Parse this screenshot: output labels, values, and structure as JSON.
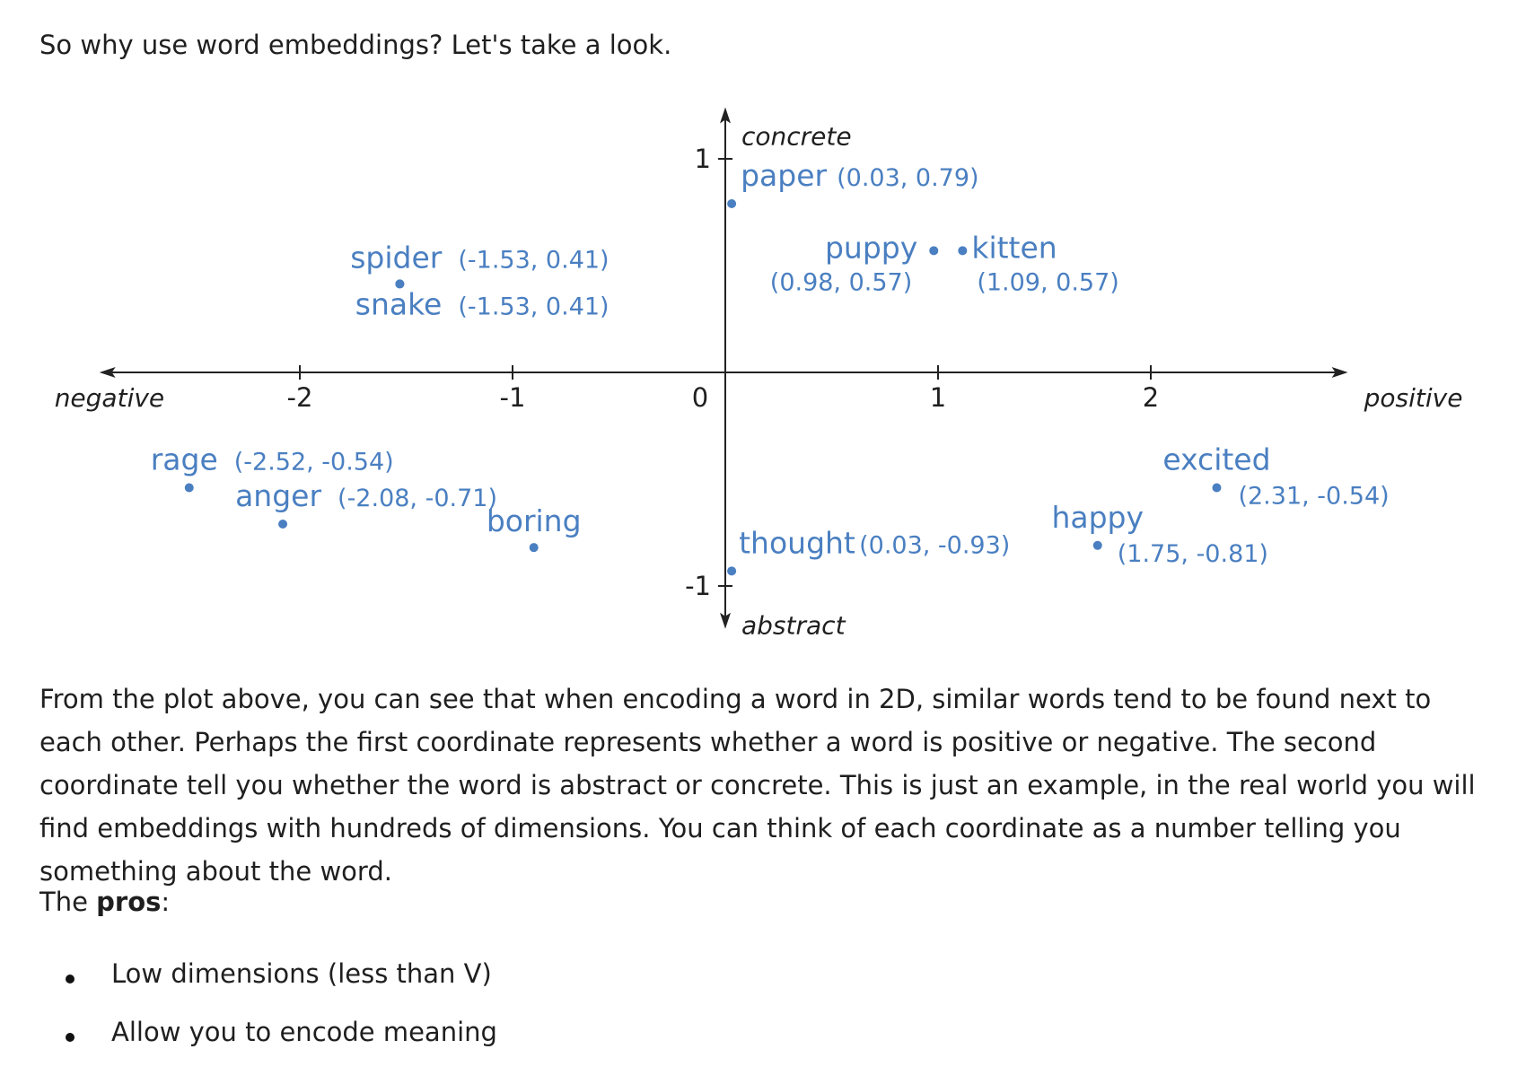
{
  "intro": "So why use word embeddings? Let's take a look.",
  "chart_data": {
    "type": "scatter",
    "xlim": [
      -2.9,
      2.8
    ],
    "ylim": [
      -1.15,
      1.25
    ],
    "x_ticks": [
      "-2",
      "-1",
      "0",
      "1",
      "2"
    ],
    "y_ticks": [
      "1",
      "-1"
    ],
    "axis_labels": {
      "x_negative": "negative",
      "x_positive": "positive",
      "y_positive": "concrete",
      "y_negative": "abstract"
    },
    "point_color": "#4a7fc1",
    "points": [
      {
        "word": "paper",
        "coord": "(0.03, 0.79)",
        "x": 0.03,
        "y": 0.79
      },
      {
        "word": "puppy",
        "coord": "(0.98, 0.57)",
        "x": 0.98,
        "y": 0.57
      },
      {
        "word": "kitten",
        "coord": "(1.09, 0.57)",
        "x": 1.09,
        "y": 0.57
      },
      {
        "word": "spider",
        "coord": "(-1.53, 0.41)",
        "x": -1.53,
        "y": 0.41
      },
      {
        "word": "snake",
        "coord": "(-1.53, 0.41)",
        "x": -1.53,
        "y": 0.41
      },
      {
        "word": "rage",
        "coord": "(-2.52, -0.54)",
        "x": -2.52,
        "y": -0.54
      },
      {
        "word": "anger",
        "coord": "(-2.08, -0.71)",
        "x": -2.08,
        "y": -0.71
      },
      {
        "word": "boring",
        "coord": "",
        "x": -0.9,
        "y": -0.82
      },
      {
        "word": "thought",
        "coord": "(0.03, -0.93)",
        "x": 0.03,
        "y": -0.93
      },
      {
        "word": "happy",
        "coord": "(1.75, -0.81)",
        "x": 1.75,
        "y": -0.81
      },
      {
        "word": "excited",
        "coord": "(2.31, -0.54)",
        "x": 2.31,
        "y": -0.54
      }
    ]
  },
  "paragraph": "From the plot above, you can see that when encoding a word in 2D, similar words tend to be found next to each other. Perhaps the first coordinate represents whether a word is positive or negative. The second coordinate tell you whether the word is abstract or concrete. This is just an example, in the real world you will find embeddings with hundreds of dimensions. You can think of each coordinate as a number telling you something about the word.",
  "pros": {
    "prefix": "The ",
    "bold": "pros",
    "suffix": ":",
    "items": [
      "Low dimensions (less than V)",
      "Allow you to encode meaning"
    ]
  }
}
